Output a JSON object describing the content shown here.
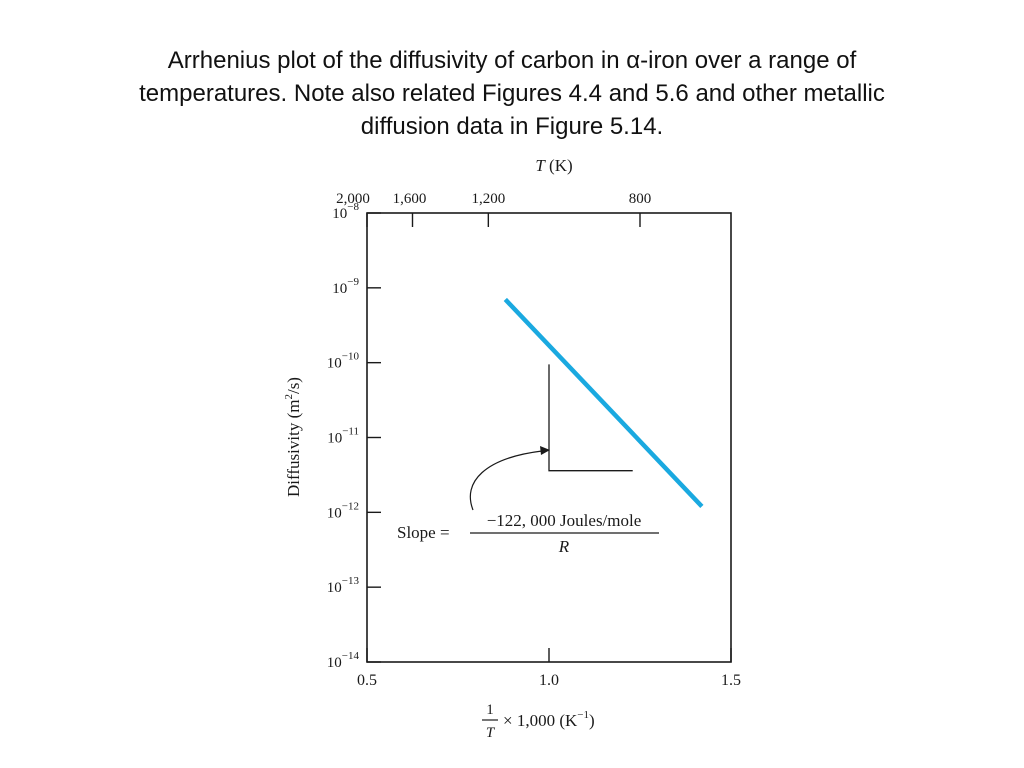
{
  "caption_lines": [
    "Arrhenius plot of the diffusivity of carbon in α-iron over a range of",
    "temperatures. Note also related Figures 4.4 and 5.6 and other metallic",
    "diffusion data in Figure 5.14."
  ],
  "chart_data": {
    "type": "line",
    "top_axis_label": {
      "symbol": "T",
      "unit": "(K)"
    },
    "top_ticks": [
      {
        "label": "2,000",
        "T": 2000
      },
      {
        "label": "1,600",
        "T": 1600
      },
      {
        "label": "1,200",
        "T": 1200
      },
      {
        "label": "800",
        "T": 800
      }
    ],
    "xlabel": {
      "numerator": "1",
      "denominator": "T",
      "suffix": "× 1,000 (K",
      "exponent": "−1",
      "close": ")"
    },
    "ylabel": {
      "text": "Diffusivity (m",
      "exponent": "2",
      "close": "/s)"
    },
    "xlim": [
      0.5,
      1.5
    ],
    "x_ticks": [
      {
        "value": 0.5,
        "label": "0.5"
      },
      {
        "value": 1.0,
        "label": "1.0"
      },
      {
        "value": 1.5,
        "label": "1.5"
      }
    ],
    "ylim": [
      1e-14,
      1e-08
    ],
    "y_scale": "log",
    "y_ticks": [
      {
        "value": 1e-08,
        "base": "10",
        "exponent": "−8"
      },
      {
        "value": 1e-09,
        "base": "10",
        "exponent": "−9"
      },
      {
        "value": 1e-10,
        "base": "10",
        "exponent": "−10"
      },
      {
        "value": 1e-11,
        "base": "10",
        "exponent": "−11"
      },
      {
        "value": 1e-12,
        "base": "10",
        "exponent": "−12"
      },
      {
        "value": 1e-13,
        "base": "10",
        "exponent": "−13"
      },
      {
        "value": 1e-14,
        "base": "10",
        "exponent": "−14"
      }
    ],
    "series": [
      {
        "color": "#1aa9e0",
        "points": [
          {
            "x": 0.88,
            "y": 7e-10
          },
          {
            "x": 1.42,
            "y": 1.2e-12
          }
        ]
      }
    ],
    "slope_triangle": {
      "x1": 1.0,
      "x2": 1.23,
      "y_top": 9.5e-11,
      "y_bottom": 3.6e-12
    },
    "annotation": {
      "prefix": "Slope =",
      "numerator": "−122, 000 Joules/mole",
      "denominator": "R"
    },
    "grid": false,
    "legend": "none"
  }
}
